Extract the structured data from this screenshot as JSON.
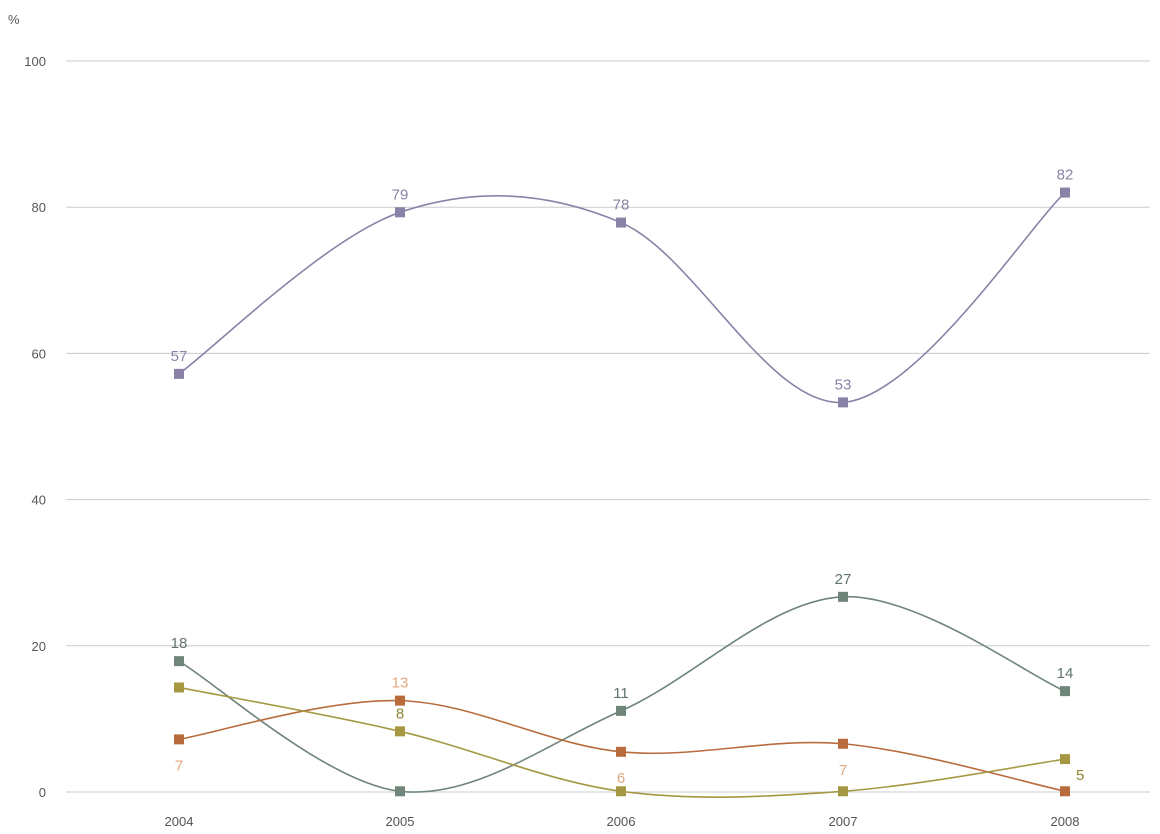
{
  "chart_data": {
    "type": "line",
    "title": "",
    "xlabel": "",
    "ylabel": "%",
    "ylim": [
      0,
      100
    ],
    "yticks": [
      0,
      20,
      40,
      60,
      80,
      100
    ],
    "grid": true,
    "categories": [
      "2004",
      "2005",
      "2006",
      "2007",
      "2008"
    ],
    "series": [
      {
        "color": "#8a82a6",
        "label_color": "#8a82a6",
        "values": [
          57.2,
          79.3,
          77.9,
          53.3,
          82.0
        ],
        "labels": [
          "57",
          "79",
          "78",
          "53",
          "82"
        ],
        "label_pos": [
          "above",
          "above",
          "above",
          "above",
          "above"
        ]
      },
      {
        "color": "#6f8579",
        "label_color": "#5f7469",
        "values": [
          17.9,
          0.1,
          11.1,
          26.7,
          13.8
        ],
        "labels": [
          "18",
          "",
          "11",
          "27",
          "14"
        ],
        "label_pos": [
          "above",
          "above",
          "above",
          "above",
          "above"
        ]
      },
      {
        "color": "#b86c3e",
        "label_color": "#e0a77e",
        "values": [
          7.2,
          12.5,
          5.5,
          6.6,
          0.1
        ],
        "labels": [
          "7",
          "13",
          "6",
          "7",
          ""
        ],
        "label_pos": [
          "below",
          "above",
          "below",
          "below",
          "below"
        ]
      },
      {
        "color": "#a59843",
        "label_color": "#8f8230",
        "values": [
          14.3,
          8.3,
          0.1,
          0.1,
          4.5
        ],
        "labels": [
          "",
          "8",
          "",
          "",
          "5"
        ],
        "label_pos": [
          "above",
          "above",
          "above",
          "above",
          "below-right"
        ]
      }
    ]
  }
}
